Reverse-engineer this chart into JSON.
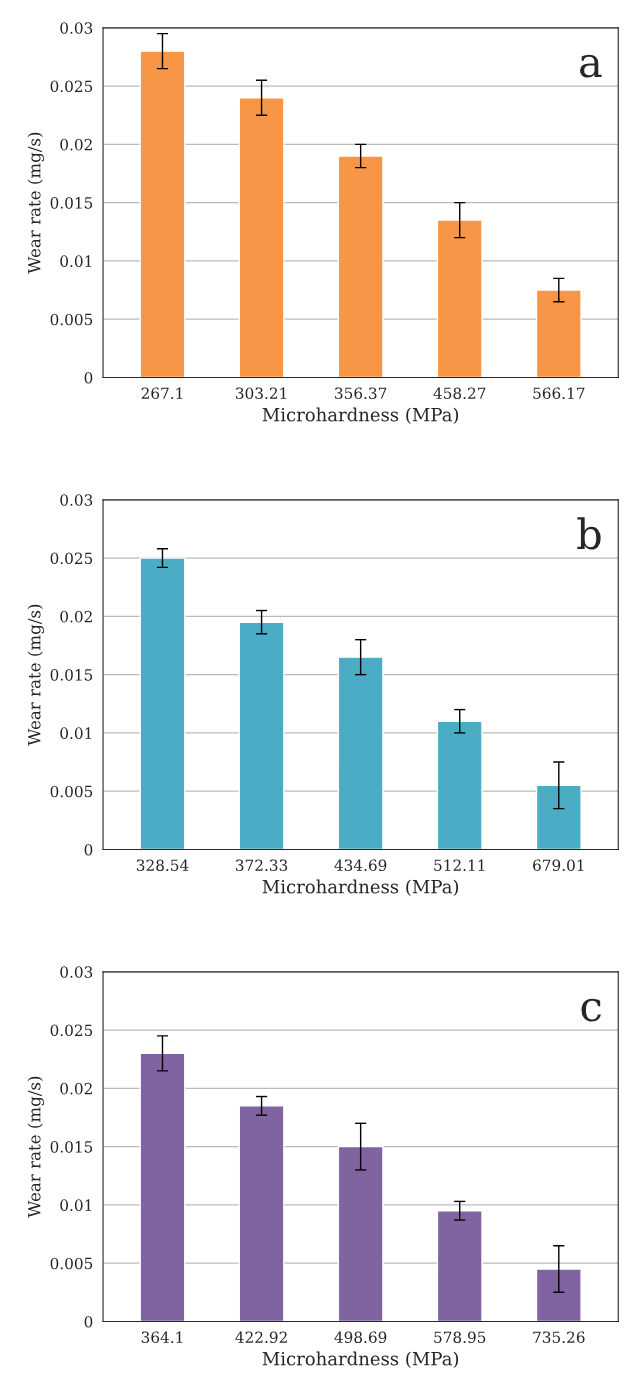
{
  "chart_data": [
    {
      "type": "bar",
      "xlabel": "Microhardness (MPa)",
      "ylabel": "Wear rate (mg/s)",
      "annotations": [
        "a"
      ],
      "categories": [
        "267.1",
        "303.21",
        "356.37",
        "458.27",
        "566.17"
      ],
      "series": [
        {
          "color": "#f79646",
          "values": [
            0.028,
            0.024,
            0.019,
            0.0135,
            0.0075
          ],
          "errors": [
            0.0015,
            0.0015,
            0.001,
            0.0015,
            0.001
          ]
        }
      ],
      "ylim": [
        0,
        0.03
      ],
      "yticks": [
        0,
        0.005,
        0.01,
        0.015,
        0.02,
        0.025,
        0.03
      ],
      "grid": "y"
    },
    {
      "type": "bar",
      "xlabel": "Microhardness (MPa)",
      "ylabel": "Wear rate (mg/s)",
      "annotations": [
        "b"
      ],
      "categories": [
        "328.54",
        "372.33",
        "434.69",
        "512.11",
        "679.01"
      ],
      "series": [
        {
          "color": "#4bacc6",
          "values": [
            0.025,
            0.0195,
            0.0165,
            0.011,
            0.0055
          ],
          "errors": [
            0.0008,
            0.001,
            0.0015,
            0.001,
            0.002
          ]
        }
      ],
      "ylim": [
        0,
        0.03
      ],
      "yticks": [
        0,
        0.005,
        0.01,
        0.015,
        0.02,
        0.025,
        0.03
      ],
      "grid": "y"
    },
    {
      "type": "bar",
      "xlabel": "Microhardness (MPa)",
      "ylabel": "Wear rate (mg/s)",
      "annotations": [
        "c"
      ],
      "categories": [
        "364.1",
        "422.92",
        "498.69",
        "578.95",
        "735.26"
      ],
      "series": [
        {
          "color": "#8064a2",
          "values": [
            0.023,
            0.0185,
            0.015,
            0.0095,
            0.0045
          ],
          "errors": [
            0.0015,
            0.0008,
            0.002,
            0.0008,
            0.002
          ]
        }
      ],
      "ylim": [
        0,
        0.03
      ],
      "yticks": [
        0,
        0.005,
        0.01,
        0.015,
        0.02,
        0.025,
        0.03
      ],
      "grid": "y"
    }
  ]
}
